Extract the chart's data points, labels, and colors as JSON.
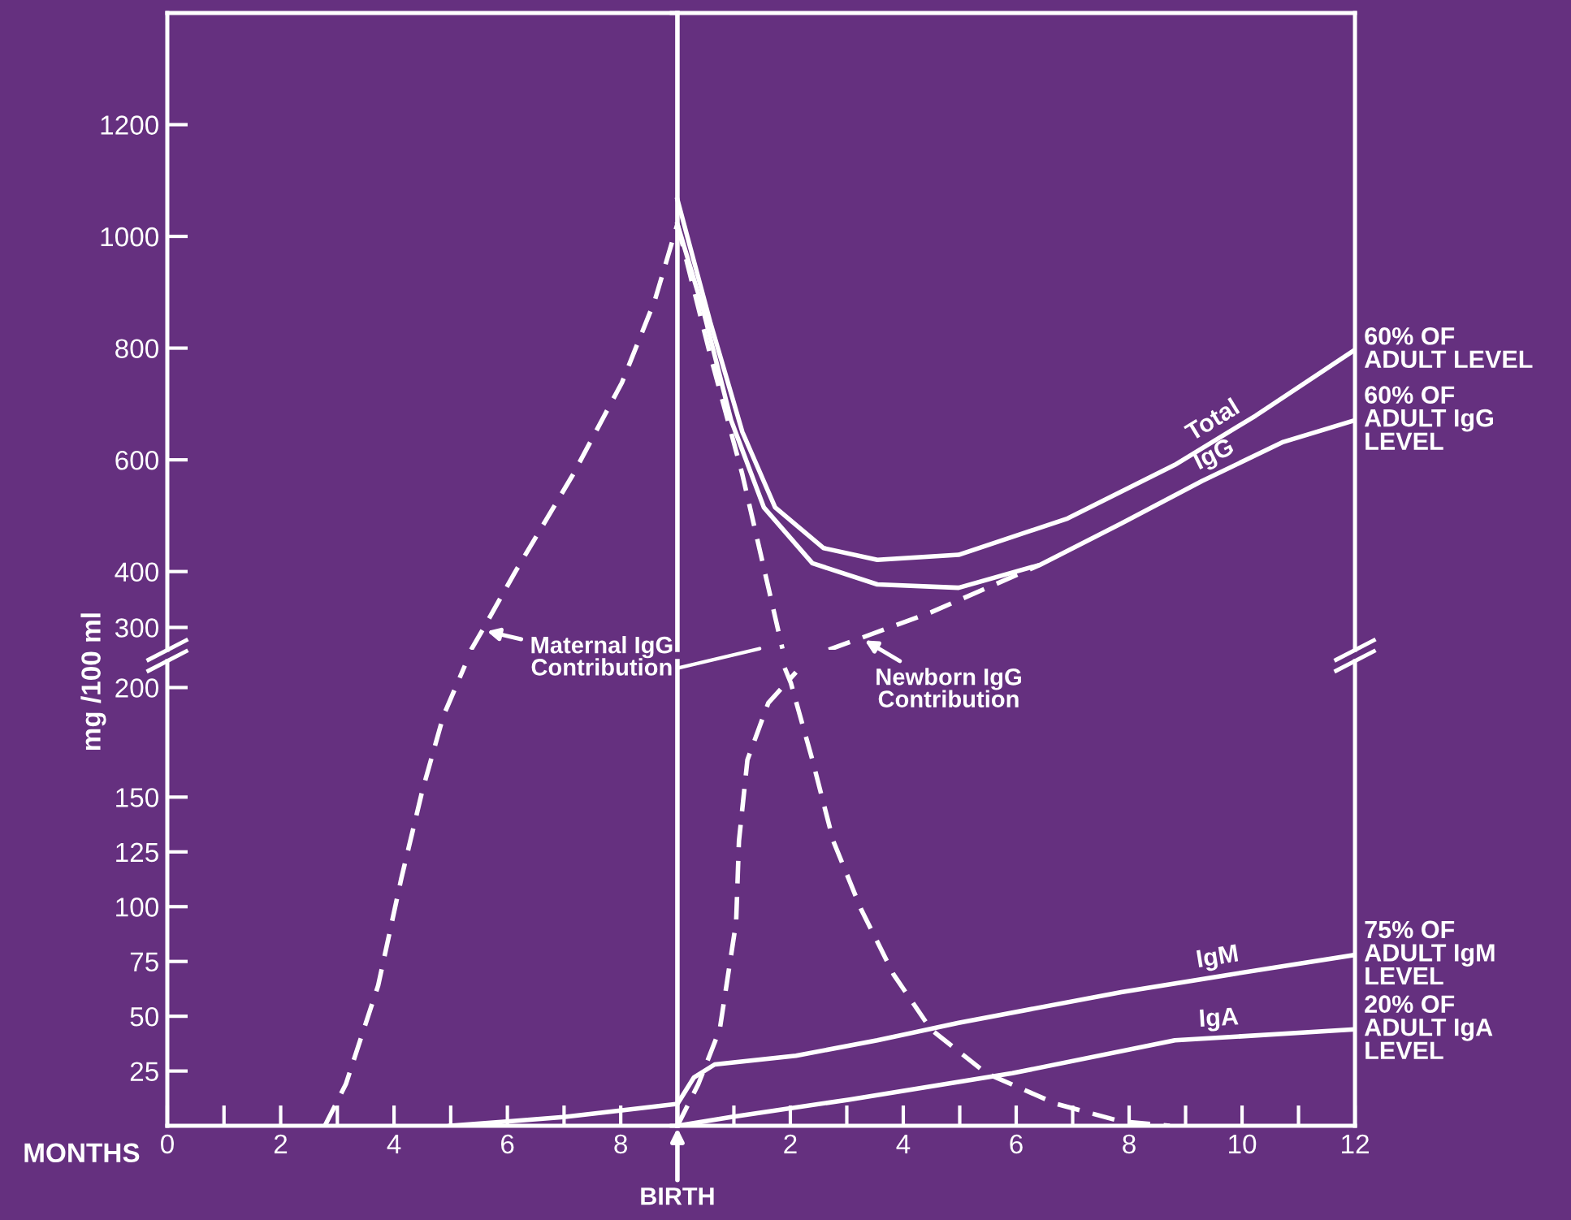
{
  "chart_data": [
    {
      "type": "line",
      "ylabel": "mg /100 ml",
      "legend": false,
      "grid": false,
      "marker": "none",
      "tick_labels": "y",
      "xlim": [
        0,
        9
      ],
      "ylim": [
        260,
        1400
      ],
      "yticks": [
        300,
        400,
        600,
        800,
        1000,
        1200
      ],
      "series": [
        {
          "color": "#ffffff",
          "line_style": "dashed",
          "x": [
            5.36,
            5.56,
            6.13,
            7.16,
            8.02,
            8.6,
            9
          ],
          "values": [
            260,
            295,
            398,
            574,
            738,
            885,
            1022
          ]
        }
      ],
      "annotations": [
        {
          "text": "Maternal IgG Contribution",
          "x": 5.56,
          "y": 295
        }
      ]
    },
    {
      "type": "line",
      "legend": false,
      "grid": false,
      "marker": "none",
      "tick_labels": false,
      "xlim": [
        -0.1,
        12
      ],
      "ylim": [
        260,
        1400
      ],
      "ref_lines": [
        {
          "axis": "x",
          "value": 0,
          "color": "#ffffff"
        }
      ],
      "series": [
        {
          "name": "Total",
          "color": "#ffffff",
          "line_style": "solid",
          "x": [
            0,
            0.58,
            1.15,
            1.73,
            2.59,
            3.54,
            4.98,
            6.91,
            8.81,
            10.24,
            12
          ],
          "values": [
            1066,
            847,
            650,
            515,
            442,
            421,
            430,
            495,
            591,
            679,
            797
          ]
        },
        {
          "name": "IgG",
          "color": "#ffffff",
          "line_style": "solid",
          "x": [
            0,
            0.46,
            0.95,
            1.53,
            2.39,
            3.54,
            4.98,
            6.42,
            7.86,
            9.29,
            10.73,
            12
          ],
          "values": [
            1022,
            867,
            671,
            515,
            415,
            377,
            371,
            412,
            486,
            562,
            632,
            671
          ]
        },
        {
          "color": "#ffffff",
          "line_style": "dashed",
          "x": [
            0,
            0.58,
            1.15,
            1.73,
            1.86
          ],
          "values": [
            1022,
            788,
            574,
            319,
            262
          ]
        },
        {
          "color": "#ffffff",
          "line_style": "dashed",
          "x": [
            2.68,
            3.25,
            4.49,
            6.42
          ],
          "values": [
            260,
            281,
            327,
            412
          ]
        }
      ],
      "annotations": [
        {
          "text": "Newborn IgG Contribution",
          "x": 3.25,
          "y": 281
        },
        {
          "text": "60% OF\nADULT LEVEL",
          "x": 12,
          "y": 797
        },
        {
          "text": "60% OF\nADULT IgG\nLEVEL",
          "x": 12,
          "y": 671
        }
      ]
    },
    {
      "type": "line",
      "xlabel": "MONTHS",
      "legend": false,
      "grid": false,
      "marker": "none",
      "xlim": [
        0,
        9
      ],
      "ylim": [
        0,
        212
      ],
      "xticks": [
        0,
        {
          "value": 1,
          "label": null
        },
        2,
        {
          "value": 3,
          "label": null
        },
        4,
        {
          "value": 5,
          "label": null
        },
        6,
        {
          "value": 7,
          "label": null
        },
        8
      ],
      "yticks": [
        25,
        50,
        75,
        100,
        125,
        150,
        200
      ],
      "series": [
        {
          "color": "#ffffff",
          "line_style": "dashed",
          "x": [
            2.78,
            3.15,
            3.72,
            4.13,
            4.5,
            4.87,
            5.25
          ],
          "values": [
            0,
            19,
            64,
            113,
            153,
            187,
            210
          ]
        },
        {
          "color": "#ffffff",
          "line_style": "solid",
          "x": [
            4.99,
            5.99,
            6.99,
            7.99,
            9
          ],
          "values": [
            0,
            2,
            4,
            7,
            10
          ]
        }
      ]
    },
    {
      "type": "line",
      "legend": false,
      "grid": false,
      "marker": "none",
      "tick_labels": "x",
      "xlim": [
        -0.1,
        12
      ],
      "ylim": [
        0,
        212
      ],
      "xticks": [
        {
          "value": 1,
          "label": null
        },
        2,
        {
          "value": 3,
          "label": null
        },
        4,
        {
          "value": 5,
          "label": null
        },
        6,
        {
          "value": 7,
          "label": null
        },
        8,
        {
          "value": 9,
          "label": null
        },
        10,
        {
          "value": 11,
          "label": null
        },
        12
      ],
      "ref_lines": [
        {
          "axis": "x",
          "value": 0,
          "label": "BIRTH",
          "color": "#ffffff"
        }
      ],
      "series": [
        {
          "name": "IgM",
          "color": "#ffffff",
          "line_style": "solid",
          "x": [
            0,
            0.29,
            0.66,
            2.1,
            3.54,
            4.98,
            7.86,
            9.78,
            12
          ],
          "values": [
            10,
            22,
            28,
            32,
            39,
            47,
            61,
            69,
            78
          ]
        },
        {
          "name": "IgA",
          "color": "#ffffff",
          "line_style": "solid",
          "x": [
            0,
            0.95,
            3.05,
            5.93,
            8.81,
            12
          ],
          "values": [
            0,
            4,
            12,
            24,
            39,
            44
          ]
        },
        {
          "color": "#ffffff",
          "line_style": "dashed",
          "x": [
            1.9,
            2.01,
            2.39,
            2.76,
            3.25,
            3.83,
            4.49,
            5.47,
            6.71,
            7.86,
            8.72
          ],
          "values": [
            209,
            202,
            167,
            130,
            99,
            69,
            44,
            24,
            10,
            2,
            0
          ]
        },
        {
          "color": "#ffffff",
          "line_style": "dashed",
          "x": [
            0,
            0.37,
            0.75,
            1.04,
            1.09,
            1.24,
            1.61,
            2.1
          ],
          "values": [
            0,
            19,
            44,
            93,
            130,
            167,
            193,
            207
          ]
        }
      ],
      "annotations": [
        {
          "text": "75% OF\nADULT IgM\nLEVEL",
          "x": 12,
          "y": 78
        },
        {
          "text": "20% OF\nADULT IgA\nLEVEL",
          "x": 12,
          "y": 44
        }
      ]
    }
  ]
}
